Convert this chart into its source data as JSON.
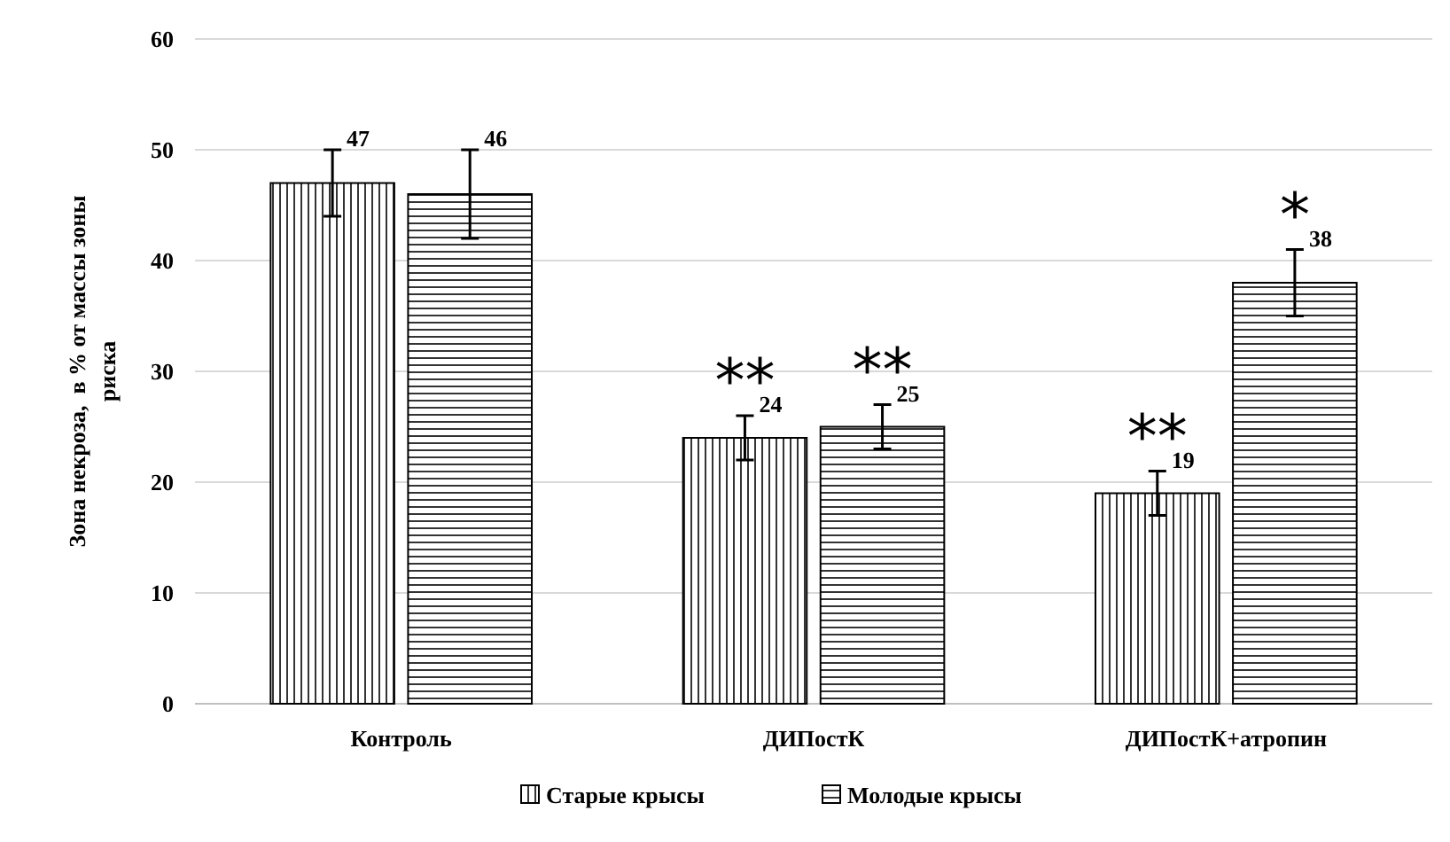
{
  "chart_data": {
    "type": "bar",
    "ylabel": "Зона некроза,  в % от массы зоны риска",
    "categories": [
      "Контроль",
      "ДИПостК",
      "ДИПостК+атропин"
    ],
    "series": [
      {
        "name": "Старые крысы",
        "color": "#000000",
        "values": [
          47,
          24,
          19
        ],
        "errors": [
          [
            44,
            50
          ],
          [
            22,
            26
          ],
          [
            17,
            21
          ]
        ]
      },
      {
        "name": "Молодые крысы",
        "color": "#000000",
        "values": [
          46,
          25,
          38
        ],
        "errors": [
          [
            42,
            50
          ],
          [
            23,
            27
          ],
          [
            35,
            41
          ]
        ]
      }
    ],
    "ylim": [
      0,
      60
    ],
    "yticks": [
      0,
      10,
      20,
      30,
      40,
      50,
      60
    ],
    "grid": "y",
    "legend": "bottom",
    "data_labels": true,
    "annotations": [
      "**",
      "**",
      "**",
      "*"
    ]
  }
}
